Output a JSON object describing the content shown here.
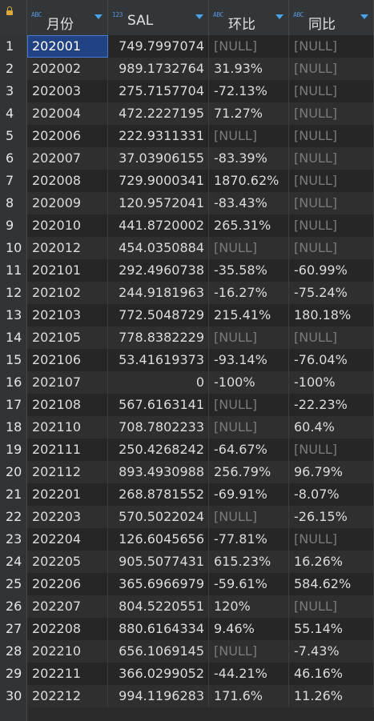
{
  "columns": [
    {
      "label": "月份",
      "type_icon": "ABC",
      "icon": "text-type-icon"
    },
    {
      "label": "SAL",
      "type_icon": "123",
      "icon": "numeric-type-icon"
    },
    {
      "label": "环比",
      "type_icon": "ABC",
      "icon": "text-type-icon"
    },
    {
      "label": "同比",
      "type_icon": "ABC",
      "icon": "text-type-icon"
    }
  ],
  "rows": [
    [
      "1",
      "202001",
      "749.7997074",
      "[NULL]",
      "[NULL]"
    ],
    [
      "2",
      "202002",
      "989.1732764",
      "31.93%",
      "[NULL]"
    ],
    [
      "3",
      "202003",
      "275.7157704",
      "-72.13%",
      "[NULL]"
    ],
    [
      "4",
      "202004",
      "472.2227195",
      "71.27%",
      "[NULL]"
    ],
    [
      "5",
      "202006",
      "222.9311331",
      "[NULL]",
      "[NULL]"
    ],
    [
      "6",
      "202007",
      "37.03906155",
      "-83.39%",
      "[NULL]"
    ],
    [
      "7",
      "202008",
      "729.9000341",
      "1870.62%",
      "[NULL]"
    ],
    [
      "8",
      "202009",
      "120.9572041",
      "-83.43%",
      "[NULL]"
    ],
    [
      "9",
      "202010",
      "441.8720002",
      "265.31%",
      "[NULL]"
    ],
    [
      "10",
      "202012",
      "454.0350884",
      "[NULL]",
      "[NULL]"
    ],
    [
      "11",
      "202101",
      "292.4960738",
      "-35.58%",
      "-60.99%"
    ],
    [
      "12",
      "202102",
      "244.9181963",
      "-16.27%",
      "-75.24%"
    ],
    [
      "13",
      "202103",
      "772.5048729",
      "215.41%",
      "180.18%"
    ],
    [
      "14",
      "202105",
      "778.8382229",
      "[NULL]",
      "[NULL]"
    ],
    [
      "15",
      "202106",
      "53.41619373",
      "-93.14%",
      "-76.04%"
    ],
    [
      "16",
      "202107",
      "0",
      "-100%",
      "-100%"
    ],
    [
      "17",
      "202108",
      "567.6163141",
      "[NULL]",
      "-22.23%"
    ],
    [
      "18",
      "202110",
      "708.7802233",
      "[NULL]",
      "60.4%"
    ],
    [
      "19",
      "202111",
      "250.4268242",
      "-64.67%",
      "[NULL]"
    ],
    [
      "20",
      "202112",
      "893.4930988",
      "256.79%",
      "96.79%"
    ],
    [
      "21",
      "202201",
      "268.8781552",
      "-69.91%",
      "-8.07%"
    ],
    [
      "22",
      "202203",
      "570.5022024",
      "[NULL]",
      "-26.15%"
    ],
    [
      "23",
      "202204",
      "126.6045656",
      "-77.81%",
      "[NULL]"
    ],
    [
      "24",
      "202205",
      "905.5077431",
      "615.23%",
      "16.26%"
    ],
    [
      "25",
      "202206",
      "365.6966979",
      "-59.61%",
      "584.62%"
    ],
    [
      "26",
      "202207",
      "804.5220551",
      "120%",
      "[NULL]"
    ],
    [
      "27",
      "202208",
      "880.6164334",
      "9.46%",
      "55.14%"
    ],
    [
      "28",
      "202210",
      "656.1069145",
      "[NULL]",
      "-7.43%"
    ],
    [
      "29",
      "202211",
      "366.0299052",
      "-44.21%",
      "46.16%"
    ],
    [
      "30",
      "202212",
      "994.1196283",
      "171.6%",
      "11.26%"
    ]
  ],
  "selected_cell": {
    "row": 0,
    "col": 1
  },
  "colors": {
    "selection": "#214283",
    "null_text": "#7a7a7a",
    "header_arrow": "#4aa3e8",
    "type_icon": "#5b8fd6"
  }
}
